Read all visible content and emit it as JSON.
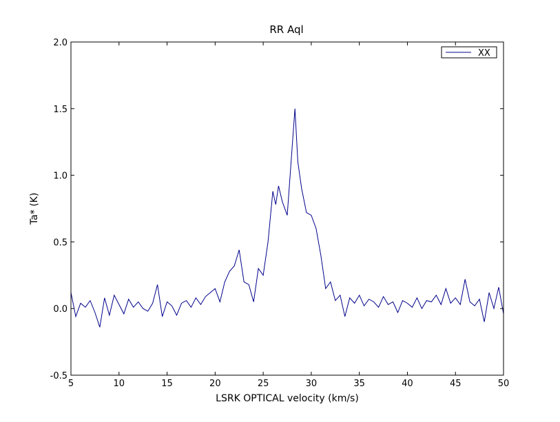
{
  "chart_data": {
    "type": "line",
    "title": "RR Aql",
    "xlabel": "LSRK OPTICAL velocity (km/s)",
    "ylabel": "Ta* (K)",
    "xlim": [
      5,
      50
    ],
    "ylim": [
      -0.5,
      2.0
    ],
    "xticks": [
      "5",
      "10",
      "15",
      "20",
      "25",
      "30",
      "35",
      "40",
      "45",
      "50"
    ],
    "yticks": [
      "-0.5",
      "0.0",
      "0.5",
      "1.0",
      "1.5",
      "2.0"
    ],
    "grid": false,
    "legend_position": "top-right",
    "series": [
      {
        "name": "XX",
        "color": "#00008b",
        "x": [
          5.0,
          5.5,
          6.0,
          6.5,
          7.0,
          7.5,
          8.0,
          8.5,
          9.0,
          9.5,
          10.0,
          10.5,
          11.0,
          11.5,
          12.0,
          12.5,
          13.0,
          13.5,
          14.0,
          14.5,
          15.0,
          15.5,
          16.0,
          16.5,
          17.0,
          17.5,
          18.0,
          18.5,
          19.0,
          19.5,
          20.0,
          20.5,
          21.0,
          21.5,
          22.0,
          22.5,
          23.0,
          23.5,
          24.0,
          24.5,
          25.0,
          25.5,
          26.0,
          26.3,
          26.6,
          27.0,
          27.5,
          28.0,
          28.3,
          28.6,
          29.0,
          29.5,
          30.0,
          30.5,
          31.0,
          31.5,
          32.0,
          32.5,
          33.0,
          33.5,
          34.0,
          34.5,
          35.0,
          35.5,
          36.0,
          36.5,
          37.0,
          37.5,
          38.0,
          38.5,
          39.0,
          39.5,
          40.0,
          40.5,
          41.0,
          41.5,
          42.0,
          42.5,
          43.0,
          43.5,
          44.0,
          44.5,
          45.0,
          45.5,
          46.0,
          46.5,
          47.0,
          47.5,
          48.0,
          48.5,
          49.0,
          49.5,
          50.0
        ],
        "y": [
          0.12,
          -0.06,
          0.04,
          0.01,
          0.06,
          -0.03,
          -0.14,
          0.08,
          -0.05,
          0.1,
          0.03,
          -0.04,
          0.07,
          0.01,
          0.05,
          0.0,
          -0.02,
          0.04,
          0.18,
          -0.06,
          0.05,
          0.02,
          -0.05,
          0.04,
          0.06,
          0.01,
          0.08,
          0.03,
          0.09,
          0.12,
          0.15,
          0.05,
          0.2,
          0.28,
          0.32,
          0.44,
          0.2,
          0.18,
          0.05,
          0.3,
          0.25,
          0.5,
          0.88,
          0.78,
          0.92,
          0.8,
          0.7,
          1.2,
          1.5,
          1.1,
          0.9,
          0.72,
          0.7,
          0.6,
          0.4,
          0.15,
          0.2,
          0.06,
          0.1,
          -0.06,
          0.08,
          0.04,
          0.1,
          0.02,
          0.07,
          0.05,
          0.01,
          0.09,
          0.03,
          0.05,
          -0.03,
          0.06,
          0.04,
          0.01,
          0.08,
          0.0,
          0.06,
          0.05,
          0.1,
          0.03,
          0.15,
          0.04,
          0.08,
          0.03,
          0.22,
          0.05,
          0.02,
          0.07,
          -0.1,
          0.12,
          0.0,
          0.16,
          -0.04
        ]
      }
    ]
  }
}
